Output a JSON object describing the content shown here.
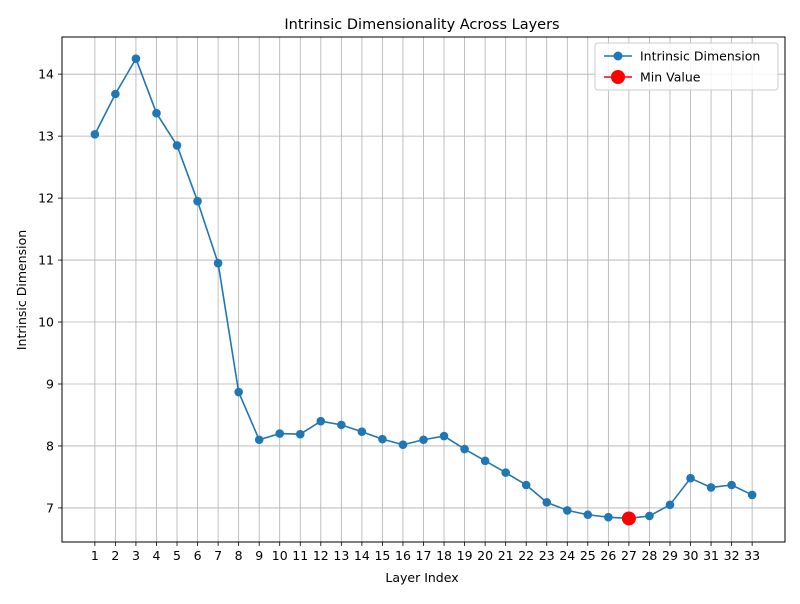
{
  "chart_data": {
    "type": "line",
    "title": "Intrinsic Dimensionality Across Layers",
    "xlabel": "Layer Index",
    "ylabel": "Intrinsic Dimension",
    "x": [
      1,
      2,
      3,
      4,
      5,
      6,
      7,
      8,
      9,
      10,
      11,
      12,
      13,
      14,
      15,
      16,
      17,
      18,
      19,
      20,
      21,
      22,
      23,
      24,
      25,
      26,
      27,
      28,
      29,
      30,
      31,
      32,
      33
    ],
    "xlim": [
      -0.6,
      34.6
    ],
    "ylim": [
      6.45,
      14.6
    ],
    "yticks": [
      7,
      8,
      9,
      10,
      11,
      12,
      13,
      14
    ],
    "grid": true,
    "legend_position": "top-right",
    "series": [
      {
        "name": "Intrinsic Dimension",
        "color": "#1f77b4",
        "marker": "circle",
        "values": [
          13.03,
          13.68,
          14.25,
          13.37,
          12.85,
          11.95,
          10.95,
          8.87,
          8.1,
          8.2,
          8.19,
          8.4,
          8.34,
          8.23,
          8.11,
          8.02,
          8.1,
          8.16,
          7.95,
          7.76,
          7.57,
          7.37,
          7.09,
          6.96,
          6.89,
          6.85,
          6.83,
          6.87,
          7.05,
          7.48,
          7.33,
          7.37,
          7.21
        ]
      }
    ],
    "highlight": {
      "name": "Min Value",
      "color": "#ff0000",
      "x": 27,
      "y": 6.83
    }
  }
}
